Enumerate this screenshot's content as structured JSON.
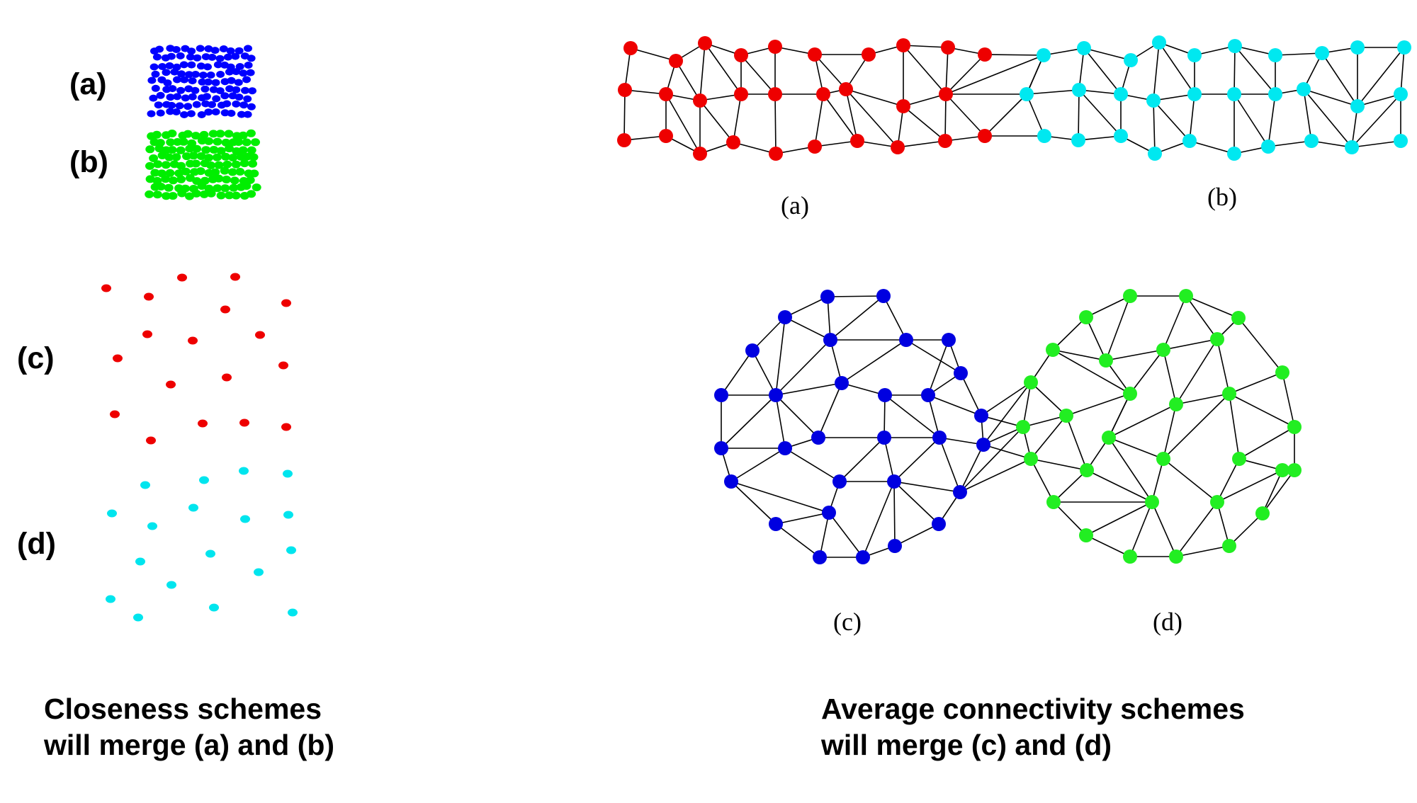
{
  "colors": {
    "left_a": "#0000ff",
    "left_b": "#00ee00",
    "left_c": "#ee0000",
    "left_d": "#00e5ee",
    "graph_a": "#ee0000",
    "graph_b": "#00e8f0",
    "graph_c": "#0000e0",
    "graph_d": "#22ee22",
    "edge": "#000000"
  },
  "left_panel": {
    "label_a": "(a)",
    "label_b": "(b)",
    "label_c": "(c)",
    "label_d": "(d)"
  },
  "right_panel": {
    "label_a": "(a)",
    "label_b": "(b)",
    "label_c": "(c)",
    "label_d": "(d)"
  },
  "captions": {
    "left_line1": "Closeness schemes",
    "left_line2": "will merge (a) and (b)",
    "right_line1": "Average connectivity schemes",
    "right_line2": "will merge (c) and (d)"
  }
}
